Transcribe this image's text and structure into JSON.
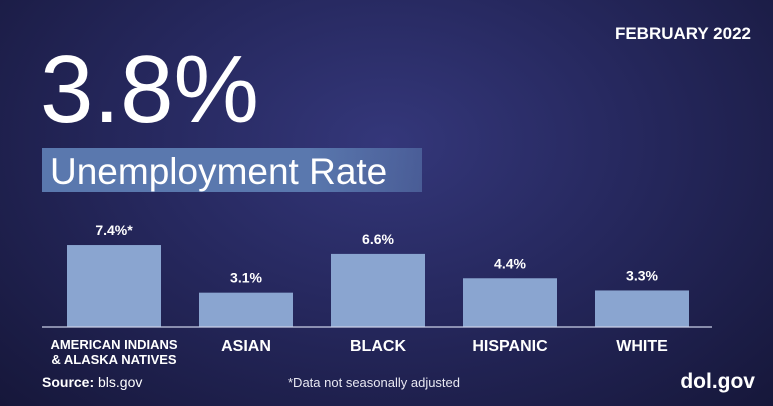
{
  "chart_data": {
    "type": "bar",
    "date": "FEBRUARY 2022",
    "headline": "3.8%",
    "title": "Unemployment Rate",
    "categories": [
      "AMERICAN INDIANS & ALASKA NATIVES",
      "ASIAN",
      "BLACK",
      "HISPANIC",
      "WHITE"
    ],
    "values": [
      7.4,
      3.1,
      6.6,
      4.4,
      3.3
    ],
    "value_labels": [
      "7.4%*",
      "3.1%",
      "6.6%",
      "4.4%",
      "3.3%"
    ],
    "color": "#8aa5d0",
    "ylim": [
      0,
      8
    ],
    "source_label": "Source:",
    "source": "bls.gov",
    "note": "*Data not seasonally adjusted",
    "website": "dol.gov"
  }
}
